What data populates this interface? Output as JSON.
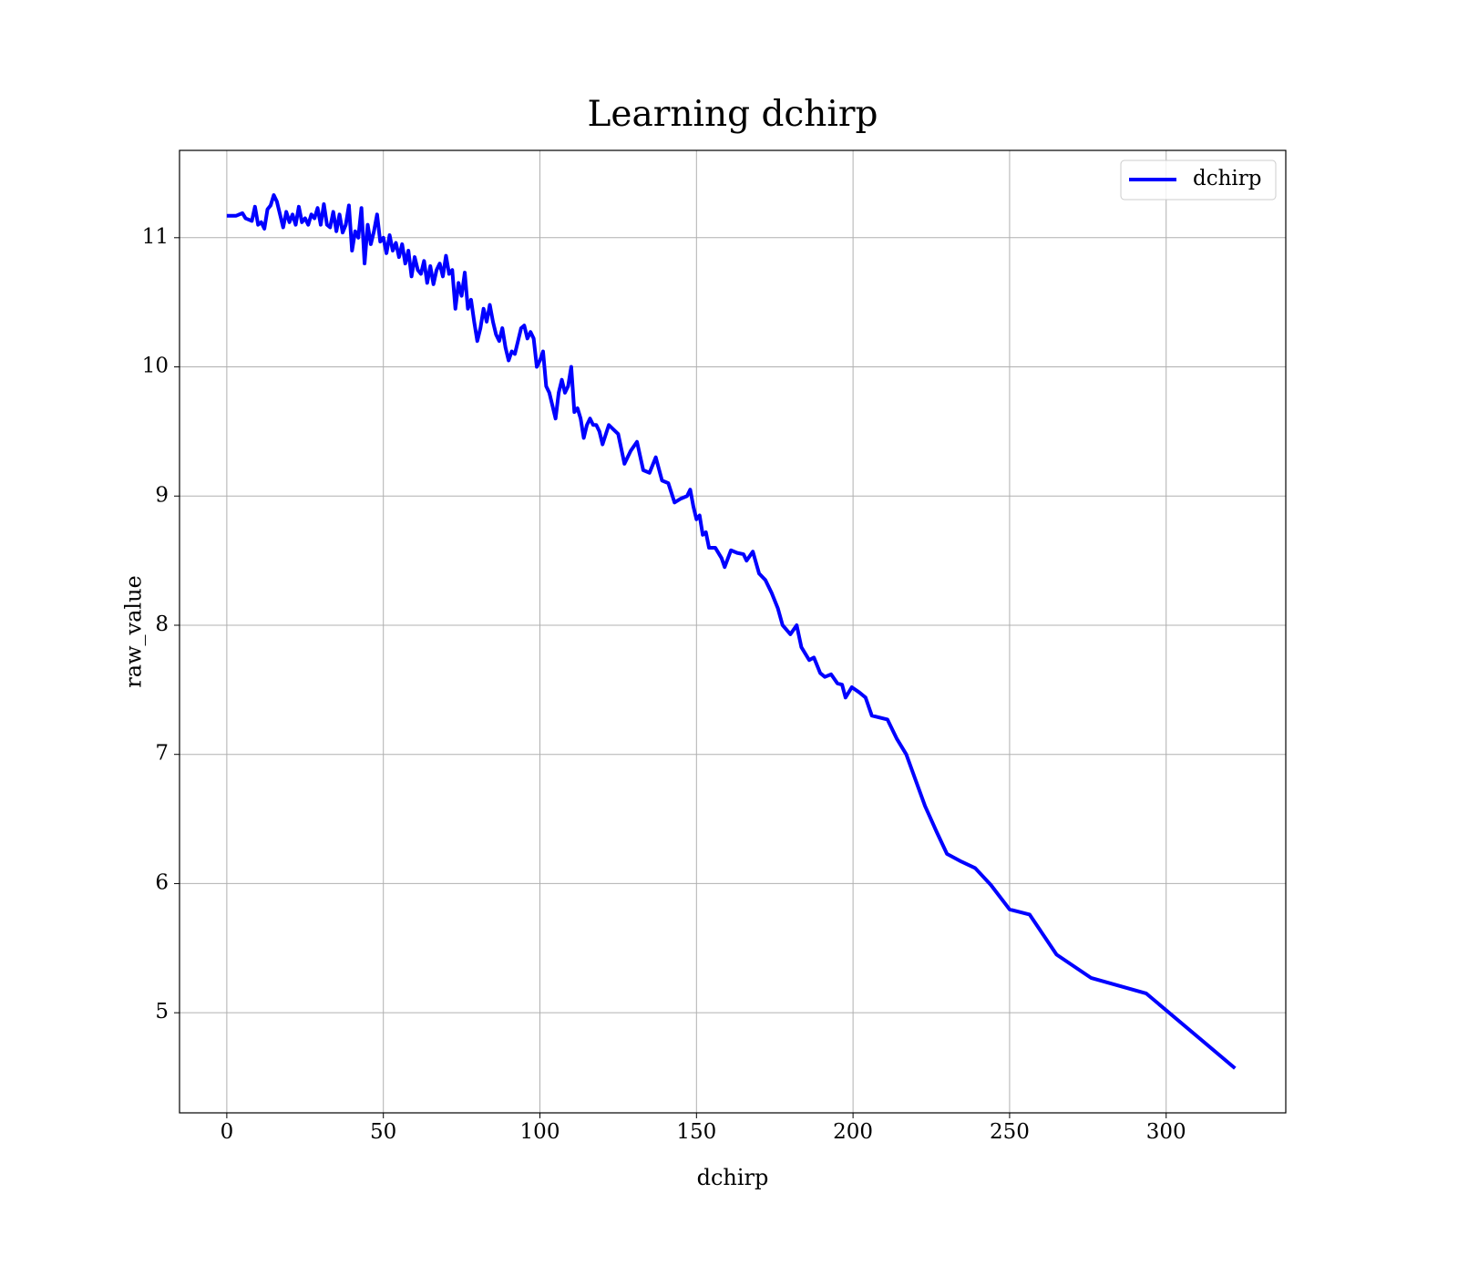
{
  "chart_data": {
    "type": "line",
    "title": "Learning dchirp",
    "xlabel": "dchirp",
    "ylabel": "raw_value",
    "x": [
      0,
      3,
      5,
      6,
      8,
      9,
      10,
      11,
      12,
      13,
      14,
      15,
      16,
      17,
      18,
      19,
      20,
      21,
      22,
      23,
      24,
      25,
      26,
      27,
      28,
      29,
      30,
      31,
      32,
      33,
      34,
      35,
      36,
      37,
      38,
      39,
      40,
      41,
      42,
      43,
      44,
      45,
      46,
      47,
      48,
      49,
      50,
      51,
      52,
      53,
      54,
      55,
      56,
      57,
      58,
      59,
      60,
      61,
      62,
      63,
      64,
      65,
      66,
      67,
      68,
      69,
      70,
      71,
      72,
      73,
      74,
      75,
      76,
      77,
      78,
      79,
      80,
      81,
      82,
      83,
      84,
      85,
      86,
      87,
      88,
      89,
      90,
      91,
      92,
      93,
      94,
      95,
      96,
      97,
      98,
      99,
      100,
      101,
      102,
      103,
      104,
      105,
      106,
      107,
      108,
      109,
      110,
      111,
      112,
      113,
      114,
      115,
      116,
      117,
      118,
      119,
      120,
      122,
      125,
      127,
      129,
      131,
      133,
      135,
      137,
      139,
      141,
      143,
      145,
      147,
      148,
      149,
      150,
      151,
      152,
      153,
      154,
      156,
      158,
      159,
      161,
      163,
      165,
      166,
      168,
      170,
      172,
      174,
      176,
      177.5,
      180,
      182,
      183.5,
      186,
      187.5,
      189.5,
      191,
      193,
      195,
      196.5,
      197.6,
      199.6,
      202,
      204,
      206,
      211,
      214,
      217,
      220,
      223,
      226.7,
      230,
      234.6,
      239,
      244,
      250,
      256.4,
      265,
      276,
      293.6,
      322
    ],
    "series": [
      {
        "name": "dchirp",
        "color": "#0000ff",
        "values": [
          11.17,
          11.17,
          11.19,
          11.15,
          11.13,
          11.24,
          11.1,
          11.12,
          11.07,
          11.22,
          11.25,
          11.33,
          11.28,
          11.18,
          11.08,
          11.2,
          11.12,
          11.18,
          11.1,
          11.24,
          11.12,
          11.15,
          11.1,
          11.18,
          11.15,
          11.23,
          11.1,
          11.26,
          11.1,
          11.08,
          11.2,
          11.05,
          11.18,
          11.04,
          11.1,
          11.25,
          10.9,
          11.05,
          11.0,
          11.23,
          10.8,
          11.1,
          10.95,
          11.05,
          11.18,
          10.97,
          11.0,
          10.88,
          11.02,
          10.9,
          10.96,
          10.85,
          10.95,
          10.8,
          10.9,
          10.7,
          10.85,
          10.75,
          10.72,
          10.82,
          10.65,
          10.78,
          10.64,
          10.75,
          10.8,
          10.7,
          10.86,
          10.72,
          10.75,
          10.45,
          10.65,
          10.55,
          10.73,
          10.45,
          10.52,
          10.35,
          10.2,
          10.3,
          10.45,
          10.35,
          10.48,
          10.35,
          10.25,
          10.2,
          10.3,
          10.15,
          10.05,
          10.12,
          10.1,
          10.2,
          10.3,
          10.32,
          10.22,
          10.27,
          10.22,
          10.0,
          10.05,
          10.12,
          9.85,
          9.8,
          9.7,
          9.6,
          9.8,
          9.9,
          9.8,
          9.85,
          10.0,
          9.65,
          9.68,
          9.6,
          9.45,
          9.55,
          9.6,
          9.55,
          9.55,
          9.5,
          9.4,
          9.55,
          9.48,
          9.25,
          9.35,
          9.42,
          9.2,
          9.18,
          9.3,
          9.12,
          9.1,
          8.95,
          8.98,
          9.0,
          9.05,
          8.92,
          8.82,
          8.85,
          8.7,
          8.72,
          8.6,
          8.6,
          8.52,
          8.45,
          8.58,
          8.56,
          8.55,
          8.5,
          8.57,
          8.4,
          8.35,
          8.25,
          8.13,
          8.0,
          7.93,
          8.0,
          7.83,
          7.73,
          7.75,
          7.63,
          7.6,
          7.62,
          7.55,
          7.54,
          7.44,
          7.52,
          7.48,
          7.44,
          7.3,
          7.27,
          7.12,
          7.0,
          6.8,
          6.6,
          6.4,
          6.23,
          6.17,
          6.12,
          5.99,
          5.8,
          5.76,
          5.45,
          5.27,
          5.15,
          4.57
        ]
      }
    ],
    "xlim": [
      -15.1,
      338.2
    ],
    "xticks": [
      0,
      50,
      100,
      150,
      200,
      250,
      300
    ],
    "ylim": [
      4.225,
      11.676
    ],
    "yticks": [
      5,
      6,
      7,
      8,
      9,
      10,
      11
    ],
    "grid": true,
    "legend": "upper right"
  }
}
